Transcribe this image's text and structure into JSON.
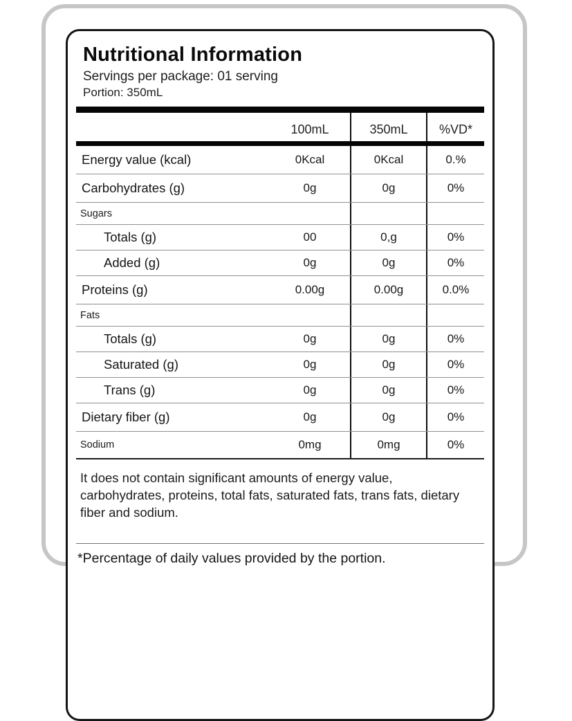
{
  "label": {
    "title": "Nutritional Information",
    "servings_line": "Servings per package: 01 serving",
    "portion_line": "Portion: 350mL",
    "table": {
      "columns": [
        "100mL",
        "350mL",
        "%VD*"
      ],
      "rows": [
        {
          "label": "Energy value (kcal)",
          "style": "normal",
          "values": [
            "0Kcal",
            "0Kcal",
            "0.%"
          ]
        },
        {
          "label": "Carbohydrates (g)",
          "style": "normal",
          "values": [
            "0g",
            "0g",
            "0%"
          ]
        },
        {
          "label": "Sugars",
          "style": "section",
          "values": [
            "",
            "",
            ""
          ]
        },
        {
          "label": "Totals (g)",
          "style": "indent",
          "values": [
            "00",
            "0,g",
            "0%"
          ]
        },
        {
          "label": "Added (g)",
          "style": "indent",
          "values": [
            "0g",
            "0g",
            "0%"
          ]
        },
        {
          "label": "Proteins (g)",
          "style": "normal",
          "values": [
            "0.00g",
            "0.00g",
            "0.0%"
          ]
        },
        {
          "label": "Fats",
          "style": "section",
          "values": [
            "",
            "",
            ""
          ]
        },
        {
          "label": "Totals (g)",
          "style": "indent",
          "values": [
            "0g",
            "0g",
            "0%"
          ]
        },
        {
          "label": "Saturated (g)",
          "style": "indent",
          "values": [
            "0g",
            "0g",
            "0%"
          ]
        },
        {
          "label": "Trans (g)",
          "style": "indent",
          "values": [
            "0g",
            "0g",
            "0%"
          ]
        },
        {
          "label": "Dietary fiber (g)",
          "style": "normal",
          "values": [
            "0g",
            "0g",
            "0%"
          ]
        },
        {
          "label": "Sodium",
          "style": "section",
          "values": [
            "0mg",
            "0mg",
            "0%"
          ]
        }
      ]
    },
    "disclaimer": "It does not contain significant amounts of energy value, carbohydrates, proteins, total fats, saturated fats, trans fats, dietary fiber and sodium.",
    "footnote": "*Percentage of daily values provided by the portion."
  }
}
